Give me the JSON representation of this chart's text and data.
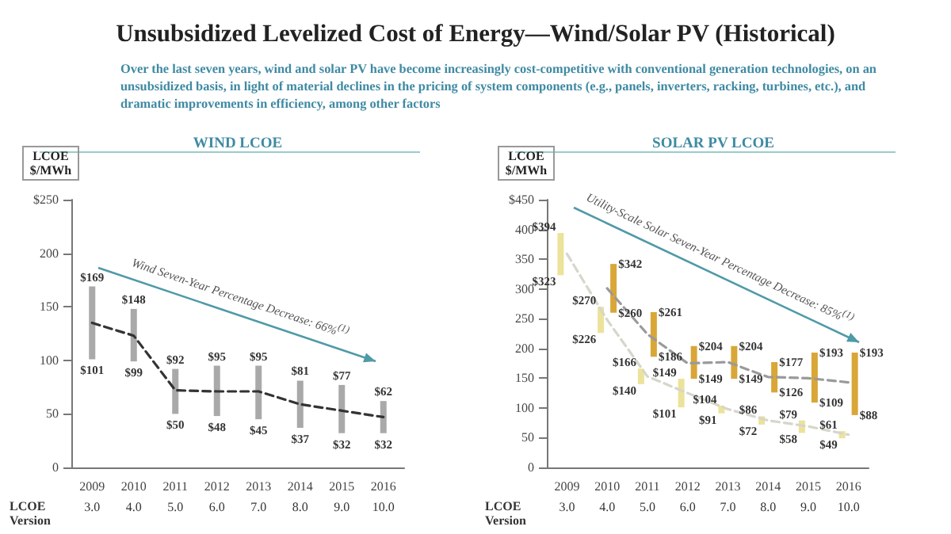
{
  "chart_data": [
    {
      "type": "other",
      "title": "Unsubsidized Levelized Cost of Energy—Wind/Solar PV (Historical)",
      "subtitle": "Over the last seven years, wind and solar PV have become increasingly cost-competitive with conventional generation technologies, on an unsubsidized basis, in light of material declines in the pricing of system components (e.g., panels, inverters, racking, turbines, etc.), and dramatic improvements in efficiency, among other factors"
    },
    {
      "type": "bar",
      "title": "WIND LCOE",
      "ylabel": "LCOE $/MWh",
      "categories": [
        "2009",
        "2010",
        "2011",
        "2012",
        "2013",
        "2014",
        "2015",
        "2016"
      ],
      "ylim": [
        0,
        250
      ],
      "yticks": [
        0,
        50,
        100,
        150,
        200,
        {
          "value": 250,
          "label": "$250"
        }
      ],
      "marker": "none",
      "series": [
        {
          "type": "bar",
          "color": "#a9a9a9",
          "base": [
            101,
            99,
            50,
            48,
            45,
            37,
            32,
            32
          ],
          "values": [
            68,
            49,
            42,
            47,
            50,
            44,
            45,
            30
          ]
        },
        {
          "type": "line",
          "color": "#333333",
          "line_style": "dashed",
          "values": [
            135,
            123,
            72,
            71,
            71,
            59,
            53,
            47
          ]
        }
      ],
      "annotations": [
        "LCOE Version",
        "Wind Seven-Year Percentage Decrease: 66%$^{(1)}$",
        "3.0",
        "4.0",
        "5.0",
        "6.0",
        "7.0",
        "8.0",
        "9.0",
        "10.0",
        {
          "text": "$169",
          "x": "2009",
          "y": 169
        },
        {
          "text": "$101",
          "x": "2009",
          "y": 101
        },
        {
          "text": "$148",
          "x": "2010",
          "y": 148
        },
        {
          "text": "$99",
          "x": "2010",
          "y": 99
        },
        {
          "text": "$92",
          "x": "2011",
          "y": 92
        },
        {
          "text": "$50",
          "x": "2011",
          "y": 50
        },
        {
          "text": "$95",
          "x": "2012",
          "y": 95
        },
        {
          "text": "$48",
          "x": "2012",
          "y": 48
        },
        {
          "text": "$95",
          "x": "2013",
          "y": 95
        },
        {
          "text": "$45",
          "x": "2013",
          "y": 45
        },
        {
          "text": "$81",
          "x": "2014",
          "y": 81
        },
        {
          "text": "$37",
          "x": "2014",
          "y": 37
        },
        {
          "text": "$77",
          "x": "2015",
          "y": 77
        },
        {
          "text": "$32",
          "x": "2015",
          "y": 32
        },
        {
          "text": "$62",
          "x": "2016",
          "y": 62
        },
        {
          "text": "$32",
          "x": "2016",
          "y": 32
        }
      ]
    },
    {
      "type": "bar",
      "title": "SOLAR PV LCOE",
      "ylabel": "LCOE $/MWh",
      "categories": [
        "2009",
        "2010",
        "2011",
        "2012",
        "2013",
        "2014",
        "2015",
        "2016"
      ],
      "ylim": [
        0,
        450
      ],
      "yticks": [
        0,
        50,
        100,
        150,
        200,
        250,
        300,
        350,
        400,
        {
          "value": 450,
          "label": "$450"
        }
      ],
      "marker": "none",
      "series": [
        {
          "type": "bar",
          "color": "#ece29a",
          "base": [
            323,
            226,
            140,
            101,
            91,
            72,
            58,
            49
          ],
          "values": [
            71,
            44,
            26,
            48,
            13,
            14,
            21,
            12
          ]
        },
        {
          "type": "bar",
          "color": "#d9a638",
          "base": [
            null,
            260,
            186,
            149,
            149,
            126,
            109,
            88
          ],
          "values": [
            null,
            82,
            75,
            55,
            55,
            51,
            84,
            105
          ]
        },
        {
          "type": "line",
          "color": "#d6d6cc",
          "line_style": "dashed",
          "values": [
            359,
            248,
            153,
            125,
            98,
            79,
            69,
            55
          ]
        },
        {
          "type": "line",
          "color": "#9a9a9a",
          "line_style": "dashed",
          "values": [
            null,
            301,
            224,
            175,
            177,
            152,
            150,
            143
          ]
        }
      ],
      "annotations": [
        "LCOE Version",
        "Utility-Scale Solar Seven-Year Percentage Decrease: 85%$^{(1)}$",
        "3.0",
        "4.0",
        "5.0",
        "6.0",
        "7.0",
        "8.0",
        "9.0",
        "10.0",
        {
          "text": "$394",
          "x": "2009",
          "y": 394
        },
        {
          "text": "$323",
          "x": "2009",
          "y": 323
        },
        {
          "text": "$270",
          "x": "2010",
          "y": 270
        },
        {
          "text": "$226",
          "x": "2010",
          "y": 226
        },
        {
          "text": "$342",
          "x": "2010",
          "y": 342
        },
        {
          "text": "$260",
          "x": "2010",
          "y": 260
        },
        {
          "text": "$166",
          "x": "2011",
          "y": 166
        },
        {
          "text": "$140",
          "x": "2011",
          "y": 140
        },
        {
          "text": "$261",
          "x": "2011",
          "y": 261
        },
        {
          "text": "$186",
          "x": "2011",
          "y": 186
        },
        {
          "text": "$149",
          "x": "2012",
          "y": 149
        },
        {
          "text": "$101",
          "x": "2012",
          "y": 101
        },
        {
          "text": "$204",
          "x": "2012",
          "y": 204
        },
        {
          "text": "$149",
          "x": "2012",
          "y": 149
        },
        {
          "text": "$104",
          "x": "2013",
          "y": 104
        },
        {
          "text": "$91",
          "x": "2013",
          "y": 91
        },
        {
          "text": "$204",
          "x": "2013",
          "y": 204
        },
        {
          "text": "$149",
          "x": "2013",
          "y": 149
        },
        {
          "text": "$86",
          "x": "2014",
          "y": 86
        },
        {
          "text": "$72",
          "x": "2014",
          "y": 72
        },
        {
          "text": "$177",
          "x": "2014",
          "y": 177
        },
        {
          "text": "$126",
          "x": "2014",
          "y": 126
        },
        {
          "text": "$79",
          "x": "2015",
          "y": 79
        },
        {
          "text": "$58",
          "x": "2015",
          "y": 58
        },
        {
          "text": "$193",
          "x": "2015",
          "y": 193
        },
        {
          "text": "$109",
          "x": "2015",
          "y": 109
        },
        {
          "text": "$61",
          "x": "2016",
          "y": 61
        },
        {
          "text": "$49",
          "x": "2016",
          "y": 49
        },
        {
          "text": "$193",
          "x": "2016",
          "y": 193
        },
        {
          "text": "$88",
          "x": "2016",
          "y": 88
        }
      ]
    }
  ]
}
